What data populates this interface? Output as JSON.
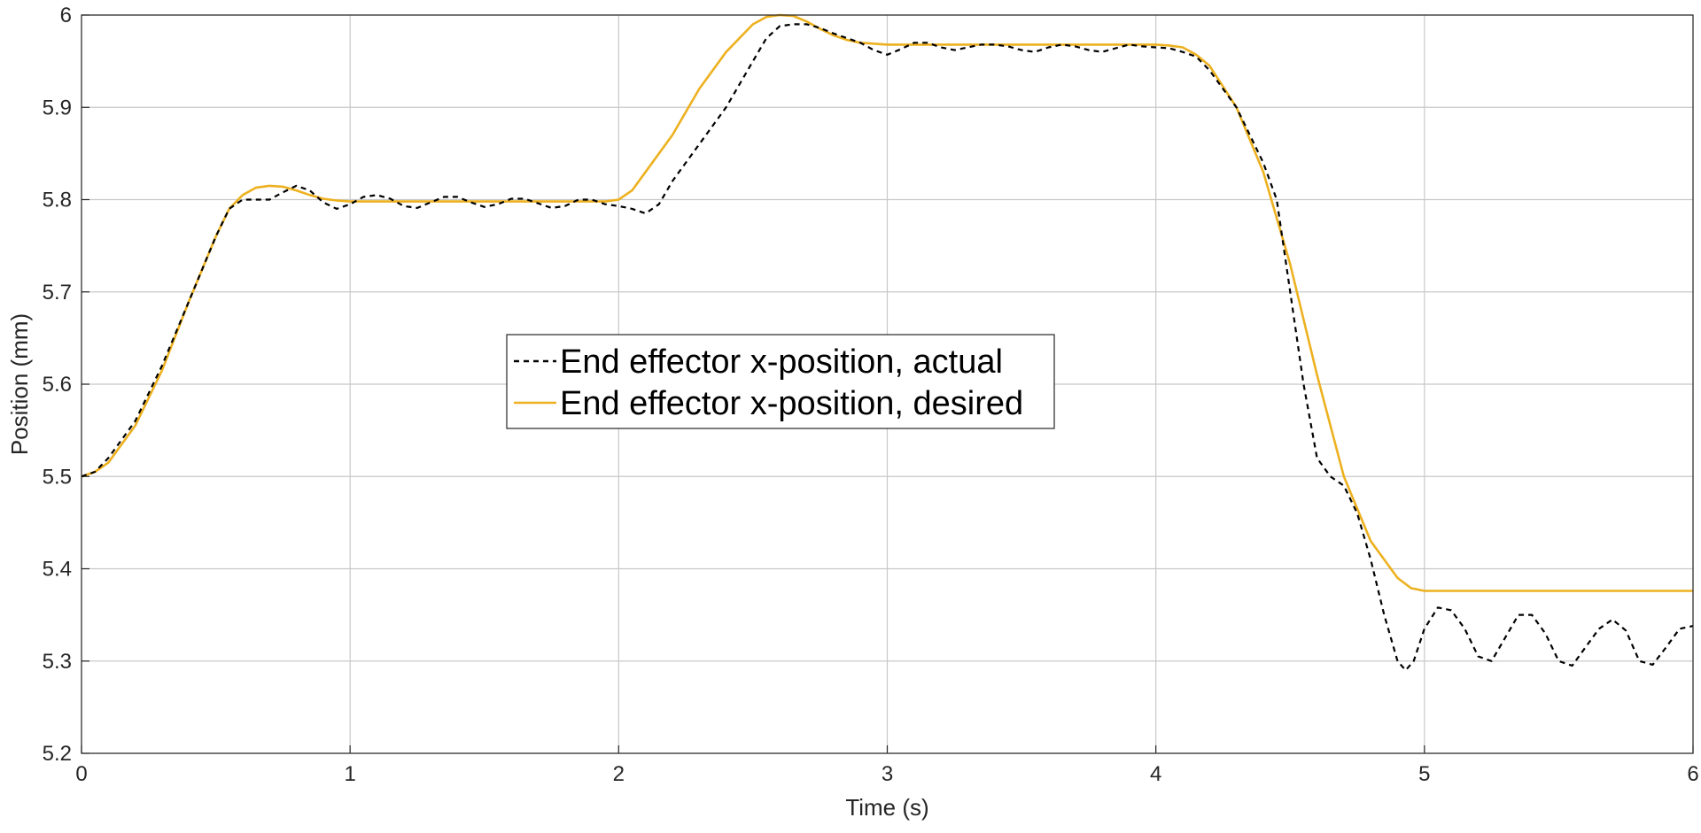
{
  "chart_data": {
    "type": "line",
    "title": "",
    "xlabel": "Time (s)",
    "ylabel": "Position (mm)",
    "xlim": [
      0,
      6
    ],
    "ylim": [
      5.2,
      6.0
    ],
    "xticks": [
      "0",
      "1",
      "2",
      "3",
      "4",
      "5",
      "6"
    ],
    "yticks": [
      "5.2",
      "5.3",
      "5.4",
      "5.5",
      "5.6",
      "5.7",
      "5.8",
      "5.9",
      "6"
    ],
    "grid": true,
    "legend": {
      "position": "center",
      "entries": [
        "End effector x-position, actual",
        "End effector x-position, desired"
      ]
    },
    "series": [
      {
        "name": "End effector x-position, actual",
        "color": "#000000",
        "style": "dashed",
        "x": [
          0,
          0.05,
          0.1,
          0.2,
          0.3,
          0.4,
          0.5,
          0.55,
          0.6,
          0.65,
          0.7,
          0.75,
          0.8,
          0.85,
          0.9,
          0.95,
          1.0,
          1.05,
          1.1,
          1.15,
          1.2,
          1.25,
          1.3,
          1.35,
          1.4,
          1.45,
          1.5,
          1.55,
          1.6,
          1.65,
          1.7,
          1.75,
          1.8,
          1.85,
          1.9,
          1.95,
          2.0,
          2.05,
          2.1,
          2.15,
          2.2,
          2.3,
          2.4,
          2.5,
          2.55,
          2.6,
          2.65,
          2.7,
          2.75,
          2.8,
          2.85,
          2.9,
          2.95,
          3.0,
          3.05,
          3.1,
          3.15,
          3.2,
          3.25,
          3.3,
          3.35,
          3.4,
          3.45,
          3.5,
          3.55,
          3.6,
          3.65,
          3.7,
          3.75,
          3.8,
          3.85,
          3.9,
          3.95,
          4.0,
          4.05,
          4.1,
          4.15,
          4.2,
          4.3,
          4.4,
          4.45,
          4.5,
          4.55,
          4.6,
          4.65,
          4.7,
          4.75,
          4.8,
          4.85,
          4.9,
          4.93,
          4.96,
          5.0,
          5.05,
          5.1,
          5.15,
          5.2,
          5.25,
          5.3,
          5.35,
          5.4,
          5.45,
          5.5,
          5.55,
          5.6,
          5.65,
          5.7,
          5.75,
          5.8,
          5.85,
          5.9,
          5.95,
          6.0
        ],
        "y": [
          5.5,
          5.505,
          5.52,
          5.56,
          5.62,
          5.69,
          5.76,
          5.79,
          5.8,
          5.8,
          5.8,
          5.808,
          5.815,
          5.81,
          5.797,
          5.79,
          5.795,
          5.803,
          5.805,
          5.801,
          5.793,
          5.791,
          5.797,
          5.803,
          5.803,
          5.797,
          5.792,
          5.795,
          5.801,
          5.801,
          5.796,
          5.791,
          5.793,
          5.8,
          5.8,
          5.795,
          5.793,
          5.79,
          5.785,
          5.795,
          5.82,
          5.86,
          5.9,
          5.95,
          5.975,
          5.988,
          5.99,
          5.99,
          5.986,
          5.98,
          5.975,
          5.97,
          5.962,
          5.957,
          5.963,
          5.97,
          5.97,
          5.965,
          5.962,
          5.965,
          5.968,
          5.968,
          5.966,
          5.962,
          5.96,
          5.965,
          5.968,
          5.966,
          5.962,
          5.96,
          5.964,
          5.968,
          5.966,
          5.965,
          5.964,
          5.96,
          5.955,
          5.94,
          5.9,
          5.84,
          5.8,
          5.7,
          5.6,
          5.52,
          5.5,
          5.49,
          5.46,
          5.41,
          5.35,
          5.3,
          5.29,
          5.3,
          5.335,
          5.358,
          5.355,
          5.335,
          5.305,
          5.3,
          5.325,
          5.35,
          5.35,
          5.33,
          5.3,
          5.295,
          5.315,
          5.335,
          5.345,
          5.333,
          5.3,
          5.296,
          5.315,
          5.335,
          5.338
        ]
      },
      {
        "name": "End effector x-position, desired",
        "color": "#EDB120",
        "style": "solid",
        "x": [
          0,
          0.05,
          0.1,
          0.2,
          0.3,
          0.4,
          0.5,
          0.55,
          0.6,
          0.65,
          0.7,
          0.75,
          0.8,
          0.85,
          0.9,
          0.95,
          1.0,
          1.5,
          1.95,
          2.0,
          2.05,
          2.1,
          2.2,
          2.3,
          2.4,
          2.5,
          2.55,
          2.6,
          2.65,
          2.7,
          2.75,
          2.8,
          2.85,
          2.9,
          2.95,
          3.0,
          3.5,
          3.9,
          4.0,
          4.05,
          4.1,
          4.15,
          4.2,
          4.3,
          4.4,
          4.5,
          4.6,
          4.7,
          4.8,
          4.9,
          4.95,
          5.0,
          5.5,
          6.0
        ],
        "y": [
          5.5,
          5.505,
          5.515,
          5.555,
          5.615,
          5.69,
          5.76,
          5.79,
          5.805,
          5.813,
          5.815,
          5.814,
          5.81,
          5.805,
          5.801,
          5.799,
          5.798,
          5.798,
          5.798,
          5.8,
          5.81,
          5.83,
          5.87,
          5.92,
          5.96,
          5.99,
          5.998,
          6.0,
          5.999,
          5.993,
          5.985,
          5.978,
          5.973,
          5.97,
          5.969,
          5.968,
          5.968,
          5.968,
          5.968,
          5.967,
          5.965,
          5.957,
          5.945,
          5.9,
          5.83,
          5.73,
          5.61,
          5.5,
          5.43,
          5.39,
          5.379,
          5.376,
          5.376,
          5.376
        ]
      }
    ]
  }
}
